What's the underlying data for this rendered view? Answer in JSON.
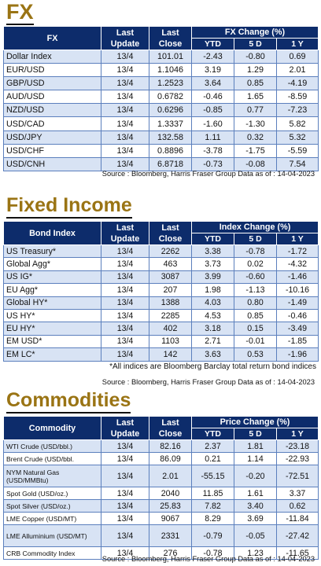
{
  "fx": {
    "title": "FX",
    "headers": {
      "name": "FX",
      "last_update": "Last Update",
      "last_close": "Last Close",
      "group": "FX Change (%)",
      "ytd": "YTD",
      "d5": "5 D",
      "y1": "1 Y"
    },
    "rows": [
      {
        "name": "Dollar Index",
        "update": "13/4",
        "close": "101.01",
        "ytd": "-2.43",
        "d5": "-0.80",
        "y1": "0.69"
      },
      {
        "name": "EUR/USD",
        "update": "13/4",
        "close": "1.1046",
        "ytd": "3.19",
        "d5": "1.29",
        "y1": "2.01"
      },
      {
        "name": "GBP/USD",
        "update": "13/4",
        "close": "1.2523",
        "ytd": "3.64",
        "d5": "0.85",
        "y1": "-4.19"
      },
      {
        "name": "AUD/USD",
        "update": "13/4",
        "close": "0.6782",
        "ytd": "-0.46",
        "d5": "1.65",
        "y1": "-8.59"
      },
      {
        "name": "NZD/USD",
        "update": "13/4",
        "close": "0.6296",
        "ytd": "-0.85",
        "d5": "0.77",
        "y1": "-7.23"
      },
      {
        "name": "USD/CAD",
        "update": "13/4",
        "close": "1.3337",
        "ytd": "-1.60",
        "d5": "-1.30",
        "y1": "5.82"
      },
      {
        "name": "USD/JPY",
        "update": "13/4",
        "close": "132.58",
        "ytd": "1.11",
        "d5": "0.32",
        "y1": "5.32"
      },
      {
        "name": "USD/CHF",
        "update": "13/4",
        "close": "0.8896",
        "ytd": "-3.78",
        "d5": "-1.75",
        "y1": "-5.59"
      },
      {
        "name": "USD/CNH",
        "update": "13/4",
        "close": "6.8718",
        "ytd": "-0.73",
        "d5": "-0.08",
        "y1": "7.54"
      }
    ],
    "source": "Source : Bloomberg, Harris Fraser Group Data as of : 14-04-2023"
  },
  "fixed_income": {
    "title": "Fixed Income",
    "headers": {
      "name": "Bond Index",
      "last_update": "Last Update",
      "last_close": "Last Close",
      "group": "Index Change (%)",
      "ytd": "YTD",
      "d5": "5 D",
      "y1": "1 Y"
    },
    "rows": [
      {
        "name": "US Treasury*",
        "update": "13/4",
        "close": "2262",
        "ytd": "3.38",
        "d5": "-0.78",
        "y1": "-1.72"
      },
      {
        "name": "Global Agg*",
        "update": "13/4",
        "close": "463",
        "ytd": "3.73",
        "d5": "0.02",
        "y1": "-4.32"
      },
      {
        "name": "US IG*",
        "update": "13/4",
        "close": "3087",
        "ytd": "3.99",
        "d5": "-0.60",
        "y1": "-1.46"
      },
      {
        "name": "EU Agg*",
        "update": "13/4",
        "close": "207",
        "ytd": "1.98",
        "d5": "-1.13",
        "y1": "-10.16"
      },
      {
        "name": "Global HY*",
        "update": "13/4",
        "close": "1388",
        "ytd": "4.03",
        "d5": "0.80",
        "y1": "-1.49"
      },
      {
        "name": "US HY*",
        "update": "13/4",
        "close": "2285",
        "ytd": "4.53",
        "d5": "0.85",
        "y1": "-0.46"
      },
      {
        "name": "EU HY*",
        "update": "13/4",
        "close": "402",
        "ytd": "3.18",
        "d5": "0.15",
        "y1": "-3.49"
      },
      {
        "name": "EM USD*",
        "update": "13/4",
        "close": "1103",
        "ytd": "2.71",
        "d5": "-0.01",
        "y1": "-1.85"
      },
      {
        "name": "EM LC*",
        "update": "13/4",
        "close": "142",
        "ytd": "3.63",
        "d5": "0.53",
        "y1": "-1.96"
      }
    ],
    "note": "*All indices are Bloomberg Barclay total return bond indices",
    "source": "Source : Bloomberg, Harris Fraser Group Data as of : 14-04-2023"
  },
  "commodities": {
    "title": "Commodities",
    "headers": {
      "name": "Commodity",
      "last_update": "Last Update",
      "last_close": "Last Close",
      "group": "Price Change (%)",
      "ytd": "YTD",
      "d5": "5 D",
      "y1": "1 Y"
    },
    "rows": [
      {
        "name": "WTI Crude (USD/bbl.)",
        "update": "13/4",
        "close": "82.16",
        "ytd": "2.37",
        "d5": "1.81",
        "y1": "-23.18"
      },
      {
        "name": "Brent Crude (USD/bbl.",
        "update": "13/4",
        "close": "86.09",
        "ytd": "0.21",
        "d5": "1.14",
        "y1": "-22.93"
      },
      {
        "name": "NYM Natural Gas (USD/MMBtu)",
        "update": "13/4",
        "close": "2.01",
        "ytd": "-55.15",
        "d5": "-0.20",
        "y1": "-72.51"
      },
      {
        "name": "Spot Gold (USD/oz.)",
        "update": "13/4",
        "close": "2040",
        "ytd": "11.85",
        "d5": "1.61",
        "y1": "3.37"
      },
      {
        "name": "Spot Silver (USD/oz.)",
        "update": "13/4",
        "close": "25.83",
        "ytd": "7.82",
        "d5": "3.40",
        "y1": "0.62"
      },
      {
        "name": "LME Copper (USD/MT)",
        "update": "13/4",
        "close": "9067",
        "ytd": "8.29",
        "d5": "3.69",
        "y1": "-11.84"
      },
      {
        "name": "LME Alluminium (USD/MT)",
        "update": "13/4",
        "close": "2331",
        "ytd": "-0.79",
        "d5": "-0.05",
        "y1": "-27.42"
      },
      {
        "name": "CRB Commodity Index",
        "update": "13/4",
        "close": "276",
        "ytd": "-0.78",
        "d5": "1.23",
        "y1": "-11.65"
      }
    ],
    "source": "Source : Bloomberg, Harris Fraser Group Data as of : 14-04-2023"
  },
  "colors": {
    "title_gold": "#9a7414",
    "header_navy": "#0d2c6b",
    "row_alt": "#d8e3f4",
    "grid_blue": "#5b7fbd"
  }
}
